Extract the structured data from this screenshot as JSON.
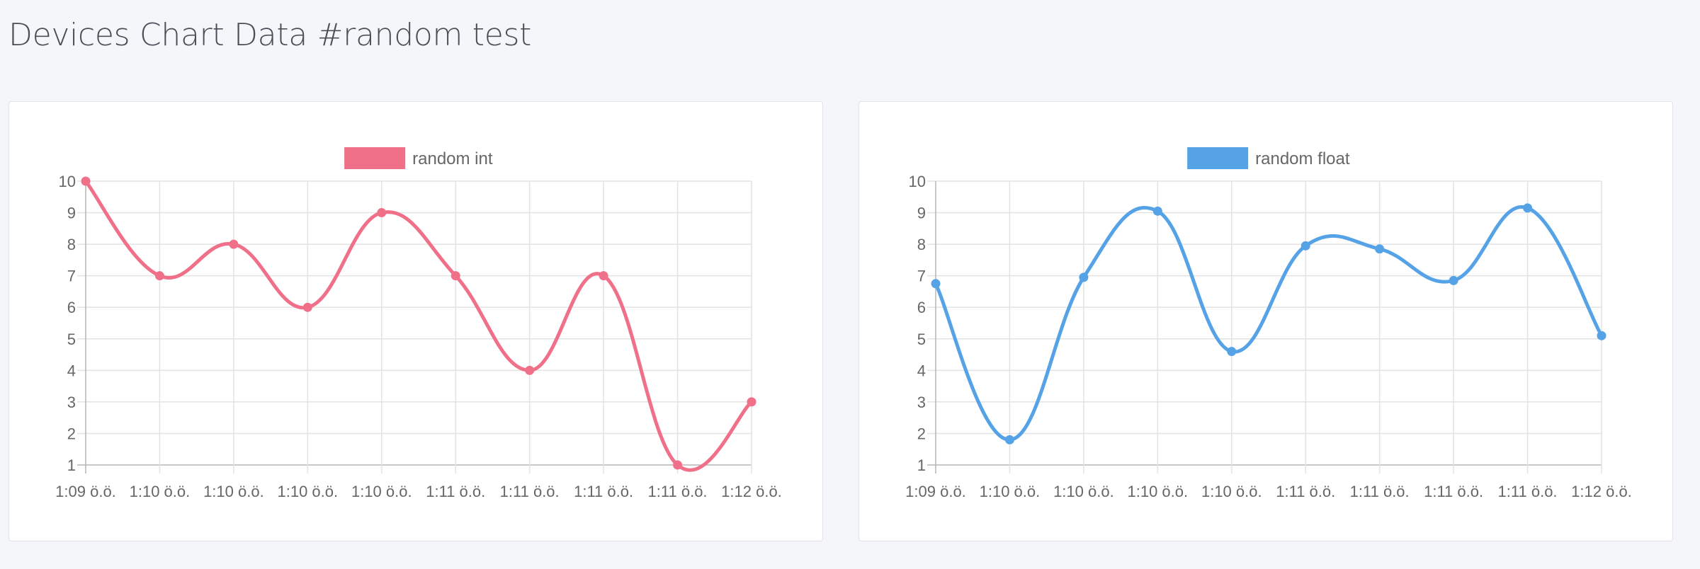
{
  "page": {
    "title": "Devices Chart Data #random test"
  },
  "chart_data": [
    {
      "type": "line",
      "legend": "random int",
      "legend_position": "top-center",
      "color": "#f0708a",
      "grid": true,
      "ylim": [
        1,
        10
      ],
      "y_ticks": [
        1,
        2,
        3,
        4,
        5,
        6,
        7,
        8,
        9,
        10
      ],
      "categories": [
        "1:09 ö.ö.",
        "1:10 ö.ö.",
        "1:10 ö.ö.",
        "1:10 ö.ö.",
        "1:10 ö.ö.",
        "1:11 ö.ö.",
        "1:11 ö.ö.",
        "1:11 ö.ö.",
        "1:11 ö.ö.",
        "1:12 ö.ö."
      ],
      "values": [
        10,
        7,
        8,
        6,
        9,
        7,
        4,
        7,
        1,
        3
      ]
    },
    {
      "type": "line",
      "legend": "random float",
      "legend_position": "top-center",
      "color": "#55a3e6",
      "grid": true,
      "ylim": [
        1,
        10
      ],
      "y_ticks": [
        1,
        2,
        3,
        4,
        5,
        6,
        7,
        8,
        9,
        10
      ],
      "categories": [
        "1:09 ö.ö.",
        "1:10 ö.ö.",
        "1:10 ö.ö.",
        "1:10 ö.ö.",
        "1:10 ö.ö.",
        "1:11 ö.ö.",
        "1:11 ö.ö.",
        "1:11 ö.ö.",
        "1:11 ö.ö.",
        "1:12 ö.ö."
      ],
      "values": [
        6.75,
        1.8,
        6.95,
        9.05,
        4.6,
        7.95,
        7.85,
        6.85,
        9.15,
        5.1
      ]
    }
  ]
}
